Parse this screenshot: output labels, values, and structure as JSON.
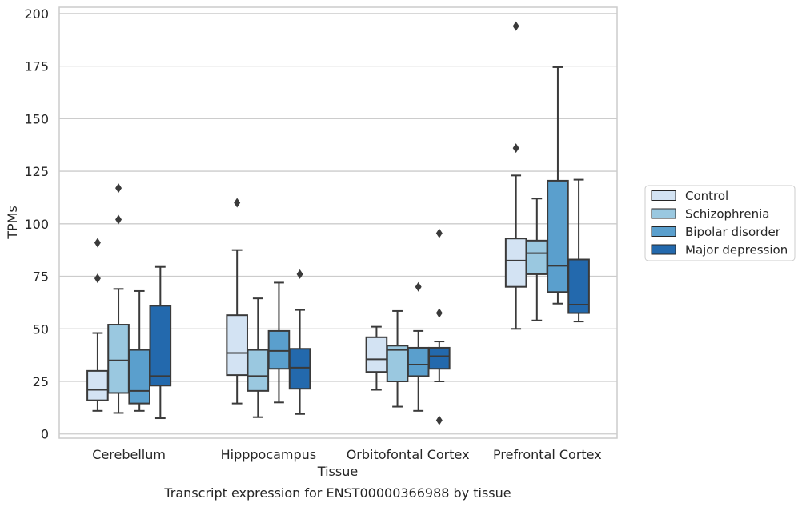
{
  "caption": "Transcript expression for ENST00000366988 by tissue",
  "chart_data": {
    "type": "box",
    "title": "",
    "xlabel": "Tissue",
    "ylabel": "TPMs",
    "ylim": [
      -2,
      203
    ],
    "yticks": [
      0,
      25,
      50,
      75,
      100,
      125,
      150,
      175,
      200
    ],
    "grid": "horizontal",
    "legend_position": "center-right, outside plot",
    "categories": [
      "Cerebellum",
      "Hipppocampus",
      "Orbitofontal Cortex",
      "Prefrontal Cortex"
    ],
    "series": [
      {
        "name": "Control",
        "color": "#d3e3f3",
        "boxes": [
          {
            "whisker_low": 11,
            "q1": 16,
            "median": 21,
            "q3": 30,
            "whisker_high": 48,
            "outliers": [
              74,
              91
            ]
          },
          {
            "whisker_low": 14.5,
            "q1": 28,
            "median": 38.5,
            "q3": 56.5,
            "whisker_high": 87.5,
            "outliers": [
              110
            ]
          },
          {
            "whisker_low": 21,
            "q1": 29.5,
            "median": 35.5,
            "q3": 46,
            "whisker_high": 51,
            "outliers": []
          },
          {
            "whisker_low": 50,
            "q1": 70,
            "median": 82.5,
            "q3": 93,
            "whisker_high": 123,
            "outliers": [
              136,
              194
            ]
          }
        ]
      },
      {
        "name": "Schizophrenia",
        "color": "#9ac8e0",
        "boxes": [
          {
            "whisker_low": 10,
            "q1": 19.5,
            "median": 35,
            "q3": 52,
            "whisker_high": 69,
            "outliers": [
              102,
              117
            ]
          },
          {
            "whisker_low": 8,
            "q1": 20.5,
            "median": 27.5,
            "q3": 40,
            "whisker_high": 64.5,
            "outliers": []
          },
          {
            "whisker_low": 13,
            "q1": 25,
            "median": 40,
            "q3": 42,
            "whisker_high": 58.5,
            "outliers": []
          },
          {
            "whisker_low": 54,
            "q1": 76,
            "median": 86,
            "q3": 92,
            "whisker_high": 112,
            "outliers": []
          }
        ]
      },
      {
        "name": "Bipolar disorder",
        "color": "#5a9fcd",
        "boxes": [
          {
            "whisker_low": 11,
            "q1": 14.5,
            "median": 20.5,
            "q3": 40,
            "whisker_high": 68,
            "outliers": []
          },
          {
            "whisker_low": 15,
            "q1": 31,
            "median": 39.5,
            "q3": 49,
            "whisker_high": 72,
            "outliers": []
          },
          {
            "whisker_low": 11,
            "q1": 27.5,
            "median": 33,
            "q3": 41,
            "whisker_high": 49,
            "outliers": [
              70
            ]
          },
          {
            "whisker_low": 62,
            "q1": 67.5,
            "median": 80,
            "q3": 120.5,
            "whisker_high": 174.5,
            "outliers": []
          }
        ]
      },
      {
        "name": "Major depression",
        "color": "#2369ad",
        "boxes": [
          {
            "whisker_low": 7.5,
            "q1": 23,
            "median": 27.5,
            "q3": 61,
            "whisker_high": 79.5,
            "outliers": []
          },
          {
            "whisker_low": 9.5,
            "q1": 21.5,
            "median": 31.5,
            "q3": 40.5,
            "whisker_high": 59,
            "outliers": [
              76
            ]
          },
          {
            "whisker_low": 25,
            "q1": 31,
            "median": 37,
            "q3": 41,
            "whisker_high": 44,
            "outliers": [
              6.5,
              57.5,
              95.5
            ]
          },
          {
            "whisker_low": 53.5,
            "q1": 57.5,
            "median": 61.5,
            "q3": 83,
            "whisker_high": 121,
            "outliers": []
          }
        ]
      }
    ]
  }
}
